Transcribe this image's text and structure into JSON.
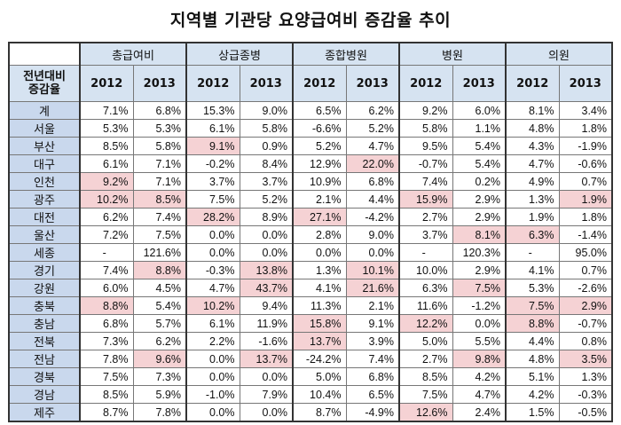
{
  "title": "지역별 기관당 요양급여비 증감율 추이",
  "corner_label": "전년대비\n증감율",
  "groups": [
    "총급여비",
    "상급종병",
    "종합병원",
    "병원",
    "의원"
  ],
  "years": [
    "2012",
    "2013"
  ],
  "highlight_color": "#f5d2d4",
  "header_color": "#d6e3f1",
  "rows": [
    {
      "region": "계",
      "values": [
        "7.1%",
        "6.8%",
        "15.3%",
        "9.0%",
        "6.5%",
        "6.2%",
        "9.2%",
        "6.0%",
        "8.1%",
        "3.4%"
      ],
      "hl": []
    },
    {
      "region": "서울",
      "values": [
        "5.3%",
        "5.3%",
        "6.1%",
        "5.8%",
        "-6.6%",
        "5.2%",
        "5.8%",
        "1.1%",
        "4.8%",
        "1.8%"
      ],
      "hl": []
    },
    {
      "region": "부산",
      "values": [
        "8.5%",
        "5.8%",
        "9.1%",
        "0.9%",
        "5.2%",
        "4.7%",
        "9.5%",
        "5.4%",
        "4.3%",
        "-1.9%"
      ],
      "hl": [
        2
      ]
    },
    {
      "region": "대구",
      "values": [
        "6.1%",
        "7.1%",
        "-0.2%",
        "8.4%",
        "12.9%",
        "22.0%",
        "-0.7%",
        "5.4%",
        "4.7%",
        "-0.6%"
      ],
      "hl": [
        5
      ]
    },
    {
      "region": "인천",
      "values": [
        "9.2%",
        "7.1%",
        "3.7%",
        "3.7%",
        "10.9%",
        "6.8%",
        "7.4%",
        "0.2%",
        "4.9%",
        "0.7%"
      ],
      "hl": [
        0
      ]
    },
    {
      "region": "광주",
      "values": [
        "10.2%",
        "8.5%",
        "7.5%",
        "5.2%",
        "2.1%",
        "4.4%",
        "15.9%",
        "2.9%",
        "1.3%",
        "1.9%"
      ],
      "hl": [
        0,
        1,
        6,
        9
      ]
    },
    {
      "region": "대전",
      "values": [
        "6.2%",
        "7.4%",
        "28.2%",
        "8.9%",
        "27.1%",
        "-4.2%",
        "2.7%",
        "2.9%",
        "1.9%",
        "1.8%"
      ],
      "hl": [
        2,
        4
      ]
    },
    {
      "region": "울산",
      "values": [
        "7.2%",
        "7.5%",
        "0.0%",
        "0.0%",
        "2.8%",
        "9.0%",
        "3.7%",
        "8.1%",
        "6.3%",
        "-1.4%"
      ],
      "hl": [
        7,
        8
      ]
    },
    {
      "region": "세종",
      "values": [
        "-",
        "121.6%",
        "0.0%",
        "0.0%",
        "0.0%",
        "0.0%",
        "-",
        "120.3%",
        "-",
        "95.0%"
      ],
      "hl": []
    },
    {
      "region": "경기",
      "values": [
        "7.4%",
        "8.8%",
        "-0.3%",
        "13.8%",
        "1.3%",
        "10.1%",
        "10.0%",
        "2.9%",
        "4.1%",
        "0.7%"
      ],
      "hl": [
        1,
        3,
        5
      ]
    },
    {
      "region": "강원",
      "values": [
        "6.0%",
        "4.5%",
        "4.7%",
        "43.7%",
        "4.1%",
        "21.6%",
        "6.3%",
        "7.5%",
        "5.3%",
        "-2.6%"
      ],
      "hl": [
        3,
        5,
        7
      ]
    },
    {
      "region": "충북",
      "values": [
        "8.8%",
        "5.4%",
        "10.2%",
        "9.4%",
        "11.3%",
        "2.1%",
        "11.6%",
        "-1.2%",
        "7.5%",
        "2.9%"
      ],
      "hl": [
        0,
        2,
        8,
        9
      ]
    },
    {
      "region": "충남",
      "values": [
        "6.8%",
        "5.7%",
        "6.1%",
        "11.9%",
        "15.8%",
        "9.1%",
        "12.2%",
        "0.0%",
        "8.8%",
        "-0.7%"
      ],
      "hl": [
        4,
        6,
        8
      ]
    },
    {
      "region": "전북",
      "values": [
        "7.3%",
        "6.2%",
        "2.2%",
        "-1.6%",
        "13.7%",
        "3.9%",
        "5.0%",
        "5.5%",
        "4.4%",
        "0.8%"
      ],
      "hl": [
        4
      ]
    },
    {
      "region": "전남",
      "values": [
        "7.8%",
        "9.6%",
        "0.0%",
        "13.7%",
        "-24.2%",
        "7.4%",
        "2.7%",
        "9.8%",
        "4.8%",
        "3.5%"
      ],
      "hl": [
        1,
        3,
        7,
        9
      ]
    },
    {
      "region": "경북",
      "values": [
        "7.5%",
        "7.3%",
        "0.0%",
        "0.0%",
        "5.0%",
        "6.8%",
        "8.5%",
        "4.2%",
        "5.1%",
        "1.3%"
      ],
      "hl": []
    },
    {
      "region": "경남",
      "values": [
        "8.5%",
        "5.9%",
        "-1.0%",
        "7.9%",
        "10.4%",
        "6.5%",
        "7.5%",
        "4.7%",
        "4.2%",
        "-0.3%"
      ],
      "hl": []
    },
    {
      "region": "제주",
      "values": [
        "8.7%",
        "7.8%",
        "0.0%",
        "0.0%",
        "8.7%",
        "-4.9%",
        "12.6%",
        "2.4%",
        "1.5%",
        "-0.5%"
      ],
      "hl": [
        6
      ]
    }
  ]
}
